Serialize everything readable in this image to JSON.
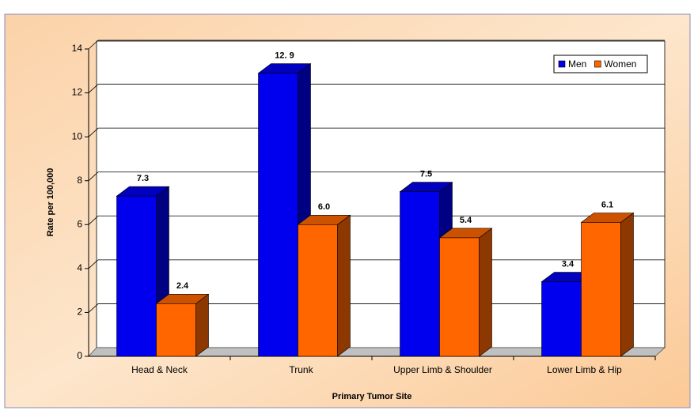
{
  "chart_data": {
    "type": "bar3d",
    "x_label": "Primary Tumor Site",
    "y_label": "Rate per 100,000",
    "categories": [
      "Head & Neck",
      "Trunk",
      "Upper Limb  & Shoulder",
      "Lower Limb  & Hip"
    ],
    "series": [
      {
        "name": "Men",
        "color": "#0000ee",
        "values": [
          7.3,
          12.9,
          7.5,
          3.4
        ],
        "value_labels": [
          "7.3",
          "12. 9",
          "7.5",
          "3.4"
        ]
      },
      {
        "name": "Women",
        "color": "#ff6600",
        "values": [
          2.4,
          6,
          5.4,
          6.1
        ],
        "value_labels": [
          "2.4",
          "6.0",
          "5.4",
          "6.1"
        ]
      }
    ],
    "ylim": [
      0,
      14
    ],
    "yticks": [
      0,
      2,
      4,
      6,
      8,
      10,
      12,
      14
    ],
    "grid": true,
    "legend": "top-right"
  }
}
